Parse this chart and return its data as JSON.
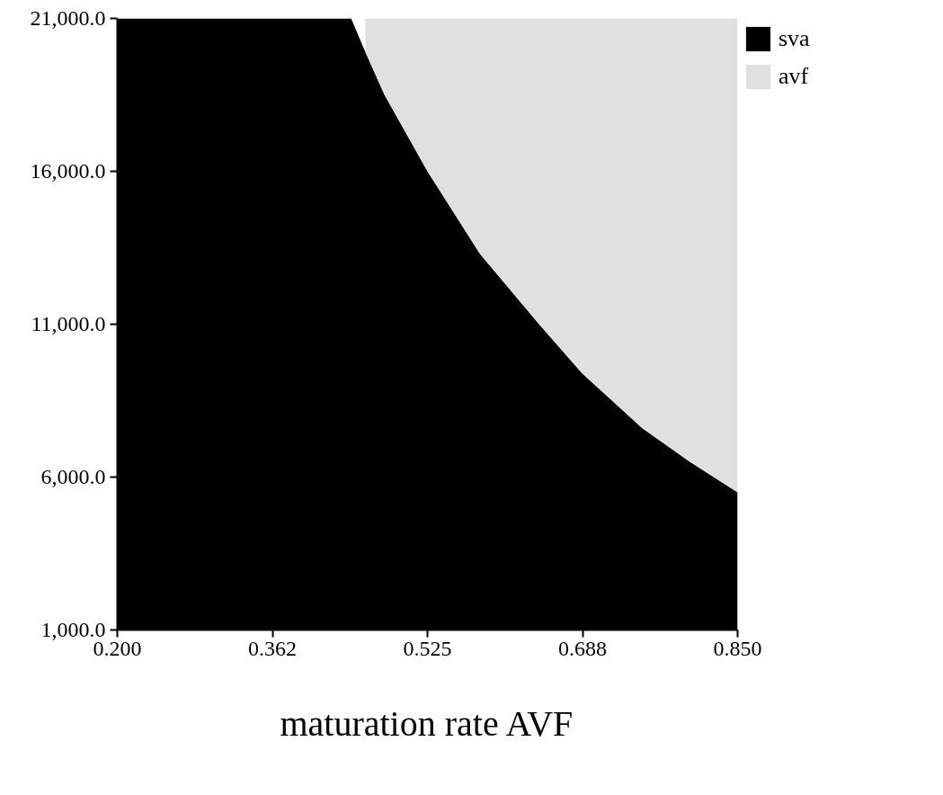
{
  "chart_data": {
    "type": "area",
    "stacked": true,
    "xlabel": "maturation rate AVF",
    "x": [
      0.2,
      0.3,
      0.4,
      0.445,
      0.46,
      0.48,
      0.525,
      0.58,
      0.642,
      0.687,
      0.75,
      0.8,
      0.85
    ],
    "series": [
      {
        "name": "sva",
        "color": "#000000",
        "values": [
          21000,
          21000,
          21000,
          21000,
          19900,
          18500,
          16000,
          13300,
          11000,
          9400,
          7600,
          6500,
          5500
        ]
      },
      {
        "name": "avf",
        "color": "#e0e0e0",
        "values": [
          null,
          null,
          null,
          null,
          1100,
          2500,
          5000,
          7700,
          10000,
          11600,
          13400,
          14500,
          15500
        ]
      }
    ],
    "xlim": [
      0.2,
      0.85
    ],
    "ylim": [
      1000,
      21000
    ],
    "xticks": [
      {
        "value": 0.2,
        "label": "0.200"
      },
      {
        "value": 0.3625,
        "label": "0.362"
      },
      {
        "value": 0.525,
        "label": "0.525"
      },
      {
        "value": 0.6875,
        "label": "0.688"
      },
      {
        "value": 0.85,
        "label": "0.850"
      }
    ],
    "yticks": [
      {
        "value": 1000,
        "label": "1,000.0"
      },
      {
        "value": 6000,
        "label": "6,000.0"
      },
      {
        "value": 11000,
        "label": "11,000.0"
      },
      {
        "value": 16000,
        "label": "16,000.0"
      },
      {
        "value": 21000,
        "label": "21,000.0"
      }
    ],
    "grid": false,
    "legend": "top right"
  }
}
